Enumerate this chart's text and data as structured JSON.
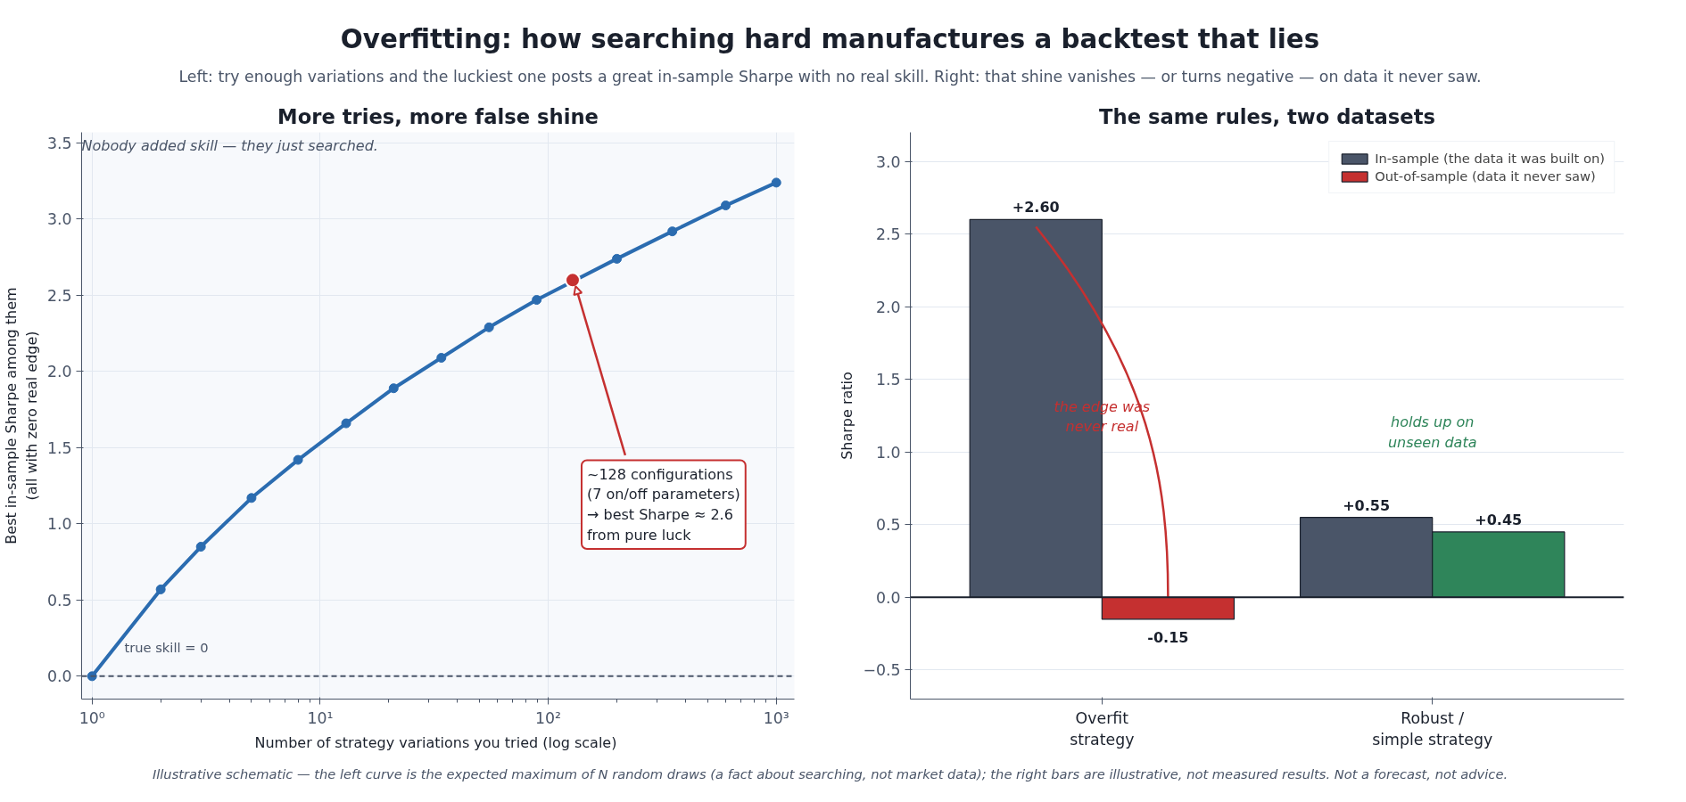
{
  "chart_data": [
    {
      "type": "other",
      "title": "Overfitting: how searching hard manufactures a backtest that lies",
      "subtitle": "Left: try enough variations and the luckiest one posts a great in-sample Sharpe with no real skill. Right: that shine vanishes — or turns negative — on data it never saw.",
      "annotations": [
        "Illustrative schematic — the left curve is the expected maximum of N random draws (a fact about searching, not market data); the right bars are illustrative, not measured results. Not a forecast, not advice."
      ]
    },
    {
      "type": "line",
      "title": "More tries, more false shine",
      "xlabel": "Number of strategy variations you tried  (log scale)",
      "ylabel": "Best in-sample Sharpe among them\n(all with zero real edge)",
      "log": "x",
      "x": [
        1,
        2,
        3,
        5,
        8,
        13,
        21,
        34,
        55,
        89,
        200,
        350,
        600,
        1000
      ],
      "series": [
        {
          "color": "#2b6cb0",
          "values": [
            0,
            0.57,
            0.85,
            1.17,
            1.42,
            1.66,
            1.89,
            2.09,
            2.29,
            2.47,
            2.74,
            2.92,
            3.09,
            3.24
          ]
        },
        {
          "type": "scatter",
          "color": "#c53030",
          "x": [
            128
          ],
          "values": [
            2.6
          ]
        }
      ],
      "marker": "circle",
      "xlim": [
        0.9,
        1200
      ],
      "ylim": [
        -0.15,
        3.57
      ],
      "xticks": [
        {
          "value": 1,
          "label": "10⁰"
        },
        {
          "value": 10,
          "label": "10¹"
        },
        {
          "value": 100,
          "label": "10²"
        },
        {
          "value": 1000,
          "label": "10³"
        }
      ],
      "yticks": [
        {
          "value": 0,
          "label": "0.0"
        },
        0.5,
        {
          "value": 1,
          "label": "1.0"
        },
        1.5,
        {
          "value": 2,
          "label": "2.0"
        },
        2.5,
        {
          "value": 3,
          "label": "3.0"
        },
        3.5
      ],
      "grid": true,
      "ref_lines": [
        {
          "axis": "y",
          "value": 0,
          "label": "true skill = 0",
          "line_style": "dashed",
          "color": "#4a5568"
        }
      ],
      "annotations": [
        "Nobody added skill — they just searched.",
        {
          "text": "~128 configurations\n(7 on/off parameters)\n→ best Sharpe ≈ 2.6\nfrom pure luck",
          "x": 128,
          "y": 2.6
        }
      ]
    },
    {
      "type": "bar",
      "title": "The same rules, two datasets",
      "ylabel": "Sharpe ratio",
      "categories": [
        "Overfit\nstrategy",
        "Robust /\nsimple strategy"
      ],
      "series": [
        {
          "name": "In-sample (the data it was built on)",
          "color": "#4a5568",
          "values": [
            2.6,
            0.55
          ],
          "value_labels": [
            "+2.60",
            "+0.55"
          ]
        },
        {
          "name": "Out-of-sample (data it never saw)",
          "colors": [
            "#c53030",
            "#2f855a"
          ],
          "values": [
            -0.15,
            0.45
          ],
          "value_labels": [
            "-0.15",
            "+0.45"
          ]
        }
      ],
      "ylim": [
        -0.7,
        3.2
      ],
      "yticks": [
        {
          "value": -0.5,
          "label": "−0.5"
        },
        {
          "value": 0,
          "label": "0.0"
        },
        0.5,
        {
          "value": 1,
          "label": "1.0"
        },
        1.5,
        {
          "value": 2,
          "label": "2.0"
        },
        2.5,
        {
          "value": 3,
          "label": "3.0"
        }
      ],
      "grid": "y",
      "legend": "top right",
      "ref_lines": [
        {
          "axis": "y",
          "value": 0,
          "color": "#1a202c",
          "line_style": "solid"
        }
      ],
      "annotations": [
        "the edge was\nnever real",
        "holds up on\nunseen data"
      ]
    }
  ]
}
